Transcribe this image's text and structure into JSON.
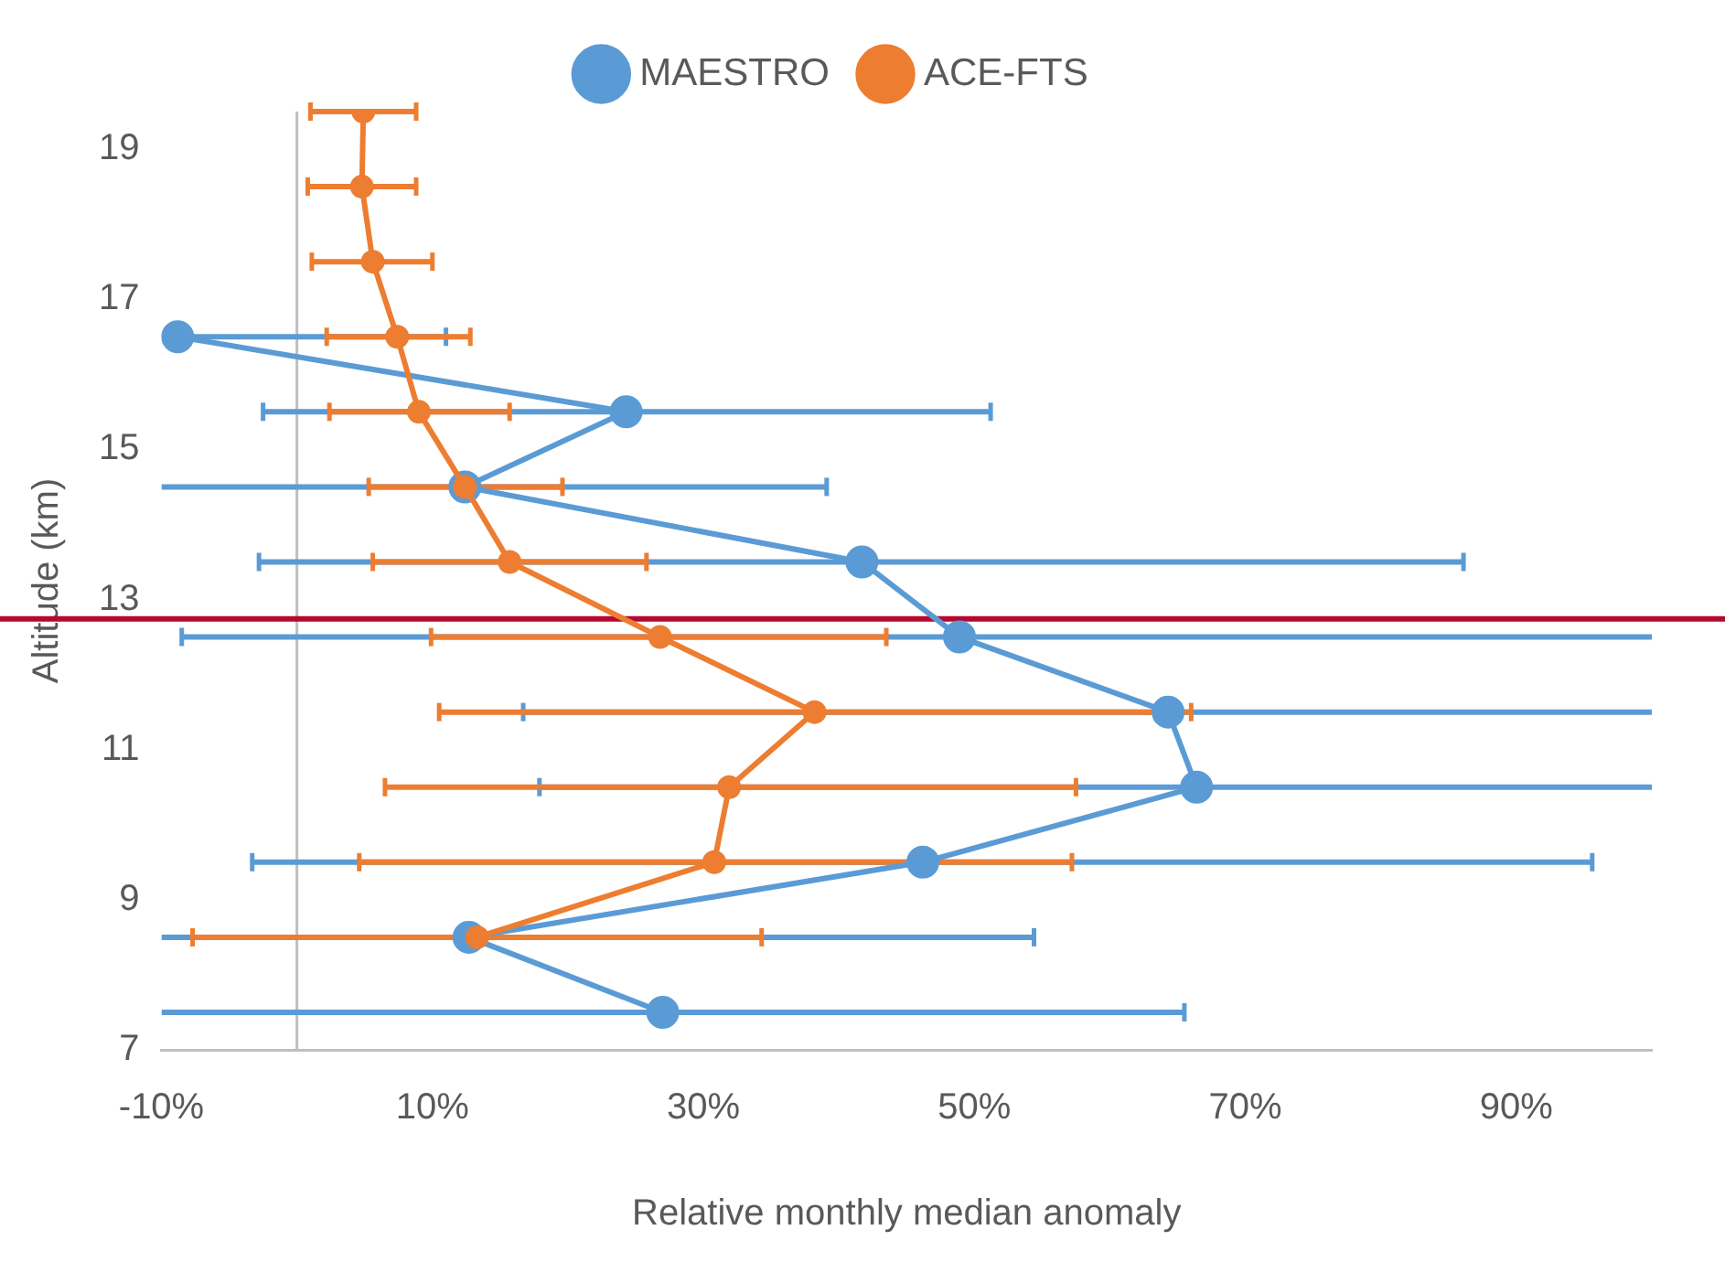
{
  "chart_data": {
    "type": "line",
    "orientation": "horizontal",
    "xlabel": "Relative monthly median anomaly",
    "ylabel": "Altitude (km)",
    "x": [
      7.5,
      8.5,
      9.5,
      10.5,
      11.5,
      12.5,
      13.5,
      14.5,
      15.5,
      16.5,
      17.5,
      18.5,
      19.5
    ],
    "xlim": [
      -10,
      100
    ],
    "xticks": [
      {
        "value": -10,
        "label": "-10%"
      },
      {
        "value": 10,
        "label": "10%"
      },
      {
        "value": 30,
        "label": "30%"
      },
      {
        "value": 50,
        "label": "50%"
      },
      {
        "value": 70,
        "label": "70%"
      },
      {
        "value": 90,
        "label": "90%"
      }
    ],
    "ylim": [
      7,
      19.5
    ],
    "yticks": [
      7,
      9,
      11,
      13,
      15,
      17,
      19
    ],
    "series": [
      {
        "name": "MAESTRO",
        "color": "#5b9bd5",
        "values": [
          27,
          12.7,
          46.2,
          66.4,
          64.3,
          48.9,
          41.7,
          12.4,
          24.3,
          -8.8,
          null,
          null,
          null
        ],
        "errors": [
          [
            -10,
            65.5
          ],
          [
            -10,
            54.4
          ],
          [
            -3.3,
            95.6
          ],
          [
            17.9,
            100
          ],
          [
            16.7,
            100
          ],
          [
            -8.5,
            100
          ],
          [
            -2.8,
            86.1
          ],
          [
            -10,
            39.1
          ],
          [
            -2.5,
            51.2
          ],
          [
            -10,
            11.0
          ],
          null,
          null,
          null
        ]
      },
      {
        "name": "ACE-FTS",
        "color": "#ed7d31",
        "values": [
          null,
          13.3,
          30.8,
          31.9,
          38.2,
          26.8,
          15.7,
          12.4,
          9.0,
          7.4,
          5.6,
          4.8,
          4.9
        ],
        "errors": [
          null,
          [
            -7.7,
            34.3
          ],
          [
            4.6,
            57.2
          ],
          [
            6.5,
            57.5
          ],
          [
            10.5,
            66.0
          ],
          [
            9.9,
            43.5
          ],
          [
            5.6,
            25.8
          ],
          [
            5.3,
            19.6
          ],
          [
            2.4,
            15.7
          ],
          [
            2.2,
            12.8
          ],
          [
            1.1,
            10.0
          ],
          [
            0.8,
            8.8
          ],
          [
            1.0,
            8.8
          ]
        ]
      }
    ],
    "ref_lines": [
      {
        "axis": "x",
        "value": 0,
        "color": "#bfbfbf"
      },
      {
        "axis": "y",
        "value": 12.74,
        "color": "#b5082f"
      }
    ],
    "legend": "top",
    "marker": "circle",
    "grid": false
  }
}
